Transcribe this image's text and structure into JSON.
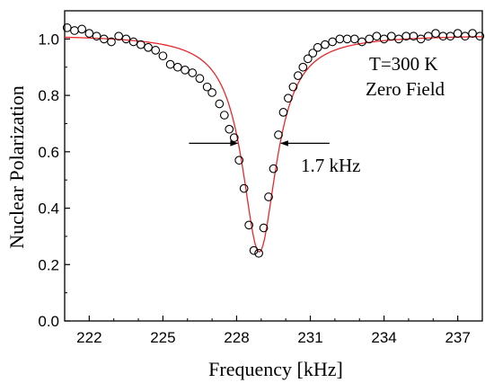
{
  "chart_data": {
    "type": "scatter",
    "xlabel": "Frequency [kHz]",
    "ylabel": "Nuclear Polarization",
    "xlim": [
      221,
      238
    ],
    "ylim": [
      0.0,
      1.1
    ],
    "xticks": [
      222,
      225,
      228,
      231,
      234,
      237
    ],
    "yticks": [
      0.0,
      0.2,
      0.4,
      0.6,
      0.8,
      1.0
    ],
    "xtick_labels": [
      "222",
      "225",
      "228",
      "231",
      "234",
      "237"
    ],
    "ytick_labels": [
      "0.0",
      "0.2",
      "0.4",
      "0.6",
      "0.8",
      "1.0"
    ],
    "grid": false,
    "annotations": {
      "temperature": "T=300 K",
      "field": "Zero Field",
      "width": "1.7 kHz"
    },
    "fit_color": "#e8282b",
    "marker_color": "#000000",
    "fit": {
      "baseline": 1.015,
      "depth": 0.77,
      "center": 228.92,
      "fwhm": 1.7,
      "shape": "lorentzian"
    },
    "series": [
      {
        "x": [
          221.1,
          221.4,
          221.7,
          222.0,
          222.3,
          222.6,
          222.9,
          223.2,
          223.5,
          223.8,
          224.1,
          224.4,
          224.7,
          225.0,
          225.3,
          225.6,
          225.9,
          226.2,
          226.5,
          226.8,
          227.0,
          227.3,
          227.5,
          227.7,
          227.9,
          228.1,
          228.3,
          228.5,
          228.7,
          228.9,
          229.1,
          229.3,
          229.5,
          229.7,
          229.9,
          230.1,
          230.3,
          230.5,
          230.7,
          230.9,
          231.1,
          231.3,
          231.6,
          231.9,
          232.2,
          232.5,
          232.8,
          233.1,
          233.4,
          233.7,
          234.0,
          234.3,
          234.6,
          234.9,
          235.2,
          235.5,
          235.8,
          236.1,
          236.4,
          236.7,
          237.0,
          237.3,
          237.6,
          237.9
        ],
        "y": [
          1.04,
          1.03,
          1.035,
          1.02,
          1.01,
          1.0,
          0.99,
          1.01,
          1.0,
          0.99,
          0.98,
          0.97,
          0.96,
          0.94,
          0.91,
          0.9,
          0.89,
          0.88,
          0.86,
          0.83,
          0.81,
          0.77,
          0.73,
          0.68,
          0.65,
          0.57,
          0.47,
          0.34,
          0.25,
          0.24,
          0.33,
          0.44,
          0.54,
          0.66,
          0.74,
          0.79,
          0.83,
          0.87,
          0.9,
          0.93,
          0.95,
          0.97,
          0.98,
          0.99,
          1.0,
          1.0,
          1.0,
          0.99,
          1.0,
          1.01,
          1.0,
          1.01,
          1.0,
          1.01,
          1.01,
          1.0,
          1.01,
          1.02,
          1.01,
          1.01,
          1.02,
          1.01,
          1.02,
          1.01
        ]
      }
    ]
  }
}
